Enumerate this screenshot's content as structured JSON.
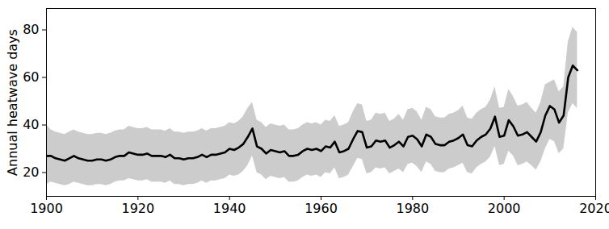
{
  "chart_data": {
    "type": "line",
    "y_label": "Annual heatwave days",
    "x": [
      1900,
      1901,
      1902,
      1903,
      1904,
      1905,
      1906,
      1907,
      1908,
      1909,
      1910,
      1911,
      1912,
      1913,
      1914,
      1915,
      1916,
      1917,
      1918,
      1919,
      1920,
      1921,
      1922,
      1923,
      1924,
      1925,
      1926,
      1927,
      1928,
      1929,
      1930,
      1931,
      1932,
      1933,
      1934,
      1935,
      1936,
      1937,
      1938,
      1939,
      1940,
      1941,
      1942,
      1943,
      1944,
      1945,
      1946,
      1947,
      1948,
      1949,
      1950,
      1951,
      1952,
      1953,
      1954,
      1955,
      1956,
      1957,
      1958,
      1959,
      1960,
      1961,
      1962,
      1963,
      1964,
      1965,
      1966,
      1967,
      1968,
      1969,
      1970,
      1971,
      1972,
      1973,
      1974,
      1975,
      1976,
      1977,
      1978,
      1979,
      1980,
      1981,
      1982,
      1983,
      1984,
      1985,
      1986,
      1987,
      1988,
      1989,
      1990,
      1991,
      1992,
      1993,
      1994,
      1995,
      1996,
      1997,
      1998,
      1999,
      2000,
      2001,
      2002,
      2003,
      2004,
      2005,
      2006,
      2007,
      2008,
      2009,
      2010,
      2011,
      2012,
      2013,
      2014,
      2015,
      2016
    ],
    "series": [
      {
        "type": "area",
        "color": "#cccccc",
        "lower": [
          15,
          16,
          15.5,
          15,
          14.5,
          15,
          16,
          15.5,
          15,
          14.5,
          14.5,
          15,
          15,
          14.5,
          15,
          16,
          16.5,
          16.5,
          17.5,
          17,
          16.5,
          16.5,
          17,
          16,
          16,
          16,
          15.5,
          16.5,
          15,
          15,
          14.5,
          15,
          15,
          15.5,
          16.5,
          15.5,
          16.5,
          16.5,
          17,
          17.5,
          19,
          18.5,
          19,
          20.5,
          23,
          27,
          20,
          19,
          17,
          18.5,
          18,
          17.5,
          18,
          16,
          16,
          16.5,
          18,
          19,
          18.5,
          19,
          18,
          20,
          19.5,
          22,
          17.5,
          18,
          19,
          22.5,
          26,
          25.5,
          19.5,
          20,
          22,
          21.5,
          22,
          19.5,
          20.5,
          21.5,
          20,
          23.5,
          24,
          22.5,
          20,
          24.5,
          23.5,
          20.5,
          20,
          20,
          21.5,
          22,
          23,
          24,
          20,
          19.5,
          22,
          23.5,
          24.5,
          26.5,
          31,
          23,
          23.5,
          29,
          27,
          23,
          23.5,
          24.5,
          23,
          21,
          24.5,
          30,
          34,
          33,
          28,
          30,
          45,
          49,
          47
        ],
        "upper": [
          40,
          38,
          37,
          36.5,
          36,
          37,
          38,
          37,
          36.5,
          36,
          36,
          36.5,
          36.5,
          36,
          36.5,
          37.5,
          38,
          38,
          39.5,
          39,
          38.5,
          38.5,
          39,
          38,
          38,
          38,
          37.5,
          38.5,
          37,
          37,
          36.5,
          37,
          37,
          37.5,
          38.5,
          37.5,
          38.5,
          38.5,
          39,
          39.5,
          41,
          40.5,
          41.5,
          43.5,
          47,
          49.5,
          42,
          41,
          39,
          40.5,
          40,
          39.5,
          40,
          38,
          38,
          38.5,
          40,
          41,
          40.5,
          41,
          40,
          42,
          41.5,
          44,
          39.5,
          40,
          41,
          45.5,
          49,
          48.5,
          41.5,
          42,
          45,
          44.5,
          45,
          41.5,
          42.5,
          44.5,
          42,
          46.5,
          47,
          45.5,
          42,
          47.5,
          46.5,
          43.5,
          43,
          43,
          44.5,
          45,
          46,
          48,
          43,
          42.5,
          45,
          46.5,
          47.5,
          50.5,
          56,
          47,
          47.5,
          55,
          52,
          48,
          48.5,
          49.5,
          47,
          45,
          49.5,
          57,
          58,
          59,
          54,
          56,
          75,
          81,
          79
        ]
      },
      {
        "type": "line",
        "color": "#000000",
        "values": [
          27,
          27,
          26,
          25.5,
          25,
          26,
          27,
          26,
          25.5,
          25,
          25,
          25.5,
          25.5,
          25,
          25.5,
          26.5,
          27,
          27,
          28.5,
          28,
          27.5,
          27.5,
          28,
          27,
          27,
          27,
          26.5,
          27.5,
          26,
          26,
          25.5,
          26,
          26,
          26.5,
          27.5,
          26.5,
          27.5,
          27.5,
          28,
          28.5,
          30,
          29.5,
          30.5,
          32,
          35,
          38.5,
          31,
          30,
          28,
          29.5,
          29,
          28.5,
          29,
          27,
          27,
          27.5,
          29,
          30,
          29.5,
          30,
          29,
          31,
          30.5,
          33,
          28.5,
          29,
          30,
          34,
          37.5,
          37,
          30.5,
          31,
          33.5,
          33,
          33.5,
          30.5,
          31.5,
          33,
          31,
          35,
          35.5,
          34,
          31,
          36,
          35,
          32,
          31.5,
          31.5,
          33,
          33.5,
          34.5,
          36,
          31.5,
          31,
          33.5,
          35,
          36,
          38.5,
          43.5,
          35,
          35.5,
          42,
          39.5,
          35.5,
          36,
          37,
          35,
          33,
          37,
          44,
          48,
          46.5,
          41,
          44,
          60,
          65,
          63
        ]
      }
    ],
    "xlim": [
      1900,
      2020
    ],
    "xticks": [
      1900,
      1920,
      1940,
      1960,
      1980,
      2000,
      2020
    ],
    "ylim": [
      10,
      89
    ],
    "yticks": [
      20,
      40,
      60,
      80
    ],
    "grid": false
  }
}
